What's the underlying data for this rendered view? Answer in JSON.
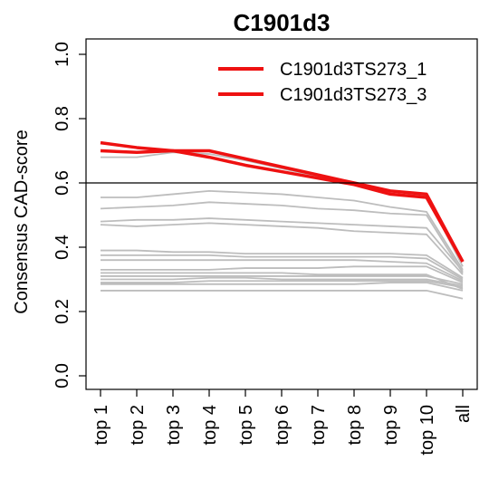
{
  "chart_data": {
    "type": "line",
    "title": "C1901d3",
    "xlabel": "",
    "ylabel": "Consensus CAD-score",
    "categories": [
      "top 1",
      "top 2",
      "top 3",
      "top 4",
      "top 5",
      "top 6",
      "top 7",
      "top 8",
      "top 9",
      "top 10",
      "all"
    ],
    "y_ticks": [
      "0.0",
      "0.2",
      "0.4",
      "0.6",
      "0.8",
      "1.0"
    ],
    "ylim": [
      0,
      1
    ],
    "reference_line": 0.6,
    "legend_position": "top-right",
    "grid": false,
    "highlight_color": "#ee1111",
    "background_series_color": "#bdbdbd",
    "series": [
      {
        "name": "C1901d3TS273_1",
        "highlight": true,
        "values": [
          0.725,
          0.71,
          0.7,
          0.7,
          0.675,
          0.65,
          0.625,
          0.6,
          0.575,
          0.565,
          0.355
        ]
      },
      {
        "name": "C1901d3TS273_3",
        "highlight": true,
        "values": [
          0.7,
          0.695,
          0.7,
          0.68,
          0.655,
          0.635,
          0.615,
          0.595,
          0.565,
          0.555,
          0.355
        ]
      },
      {
        "values": [
          0.68,
          0.68,
          0.695,
          0.69,
          0.67,
          0.645,
          0.62,
          0.6,
          0.575,
          0.56,
          0.34
        ]
      },
      {
        "values": [
          0.555,
          0.555,
          0.565,
          0.575,
          0.57,
          0.565,
          0.555,
          0.545,
          0.525,
          0.51,
          0.33
        ]
      },
      {
        "values": [
          0.52,
          0.525,
          0.53,
          0.54,
          0.535,
          0.53,
          0.52,
          0.515,
          0.505,
          0.5,
          0.32
        ]
      },
      {
        "values": [
          0.47,
          0.465,
          0.47,
          0.475,
          0.47,
          0.465,
          0.46,
          0.45,
          0.445,
          0.44,
          0.315
        ]
      },
      {
        "values": [
          0.48,
          0.485,
          0.485,
          0.49,
          0.485,
          0.48,
          0.475,
          0.47,
          0.465,
          0.46,
          0.325
        ]
      },
      {
        "values": [
          0.39,
          0.39,
          0.385,
          0.385,
          0.38,
          0.38,
          0.38,
          0.38,
          0.38,
          0.375,
          0.305
        ]
      },
      {
        "values": [
          0.375,
          0.375,
          0.375,
          0.375,
          0.37,
          0.37,
          0.37,
          0.37,
          0.37,
          0.365,
          0.3
        ]
      },
      {
        "values": [
          0.36,
          0.36,
          0.36,
          0.36,
          0.36,
          0.36,
          0.36,
          0.36,
          0.355,
          0.35,
          0.295
        ]
      },
      {
        "values": [
          0.33,
          0.33,
          0.33,
          0.33,
          0.335,
          0.335,
          0.335,
          0.34,
          0.34,
          0.34,
          0.29
        ]
      },
      {
        "values": [
          0.31,
          0.31,
          0.31,
          0.31,
          0.31,
          0.31,
          0.31,
          0.31,
          0.31,
          0.31,
          0.285
        ]
      },
      {
        "values": [
          0.3,
          0.3,
          0.3,
          0.305,
          0.305,
          0.3,
          0.3,
          0.3,
          0.3,
          0.3,
          0.28
        ]
      },
      {
        "values": [
          0.29,
          0.29,
          0.29,
          0.295,
          0.295,
          0.295,
          0.295,
          0.295,
          0.295,
          0.295,
          0.275
        ]
      },
      {
        "values": [
          0.32,
          0.32,
          0.32,
          0.32,
          0.32,
          0.32,
          0.315,
          0.315,
          0.315,
          0.315,
          0.27
        ]
      },
      {
        "values": [
          0.285,
          0.285,
          0.285,
          0.285,
          0.285,
          0.285,
          0.285,
          0.285,
          0.29,
          0.29,
          0.265
        ]
      },
      {
        "values": [
          0.265,
          0.265,
          0.265,
          0.265,
          0.265,
          0.265,
          0.265,
          0.265,
          0.265,
          0.265,
          0.24
        ]
      }
    ]
  }
}
